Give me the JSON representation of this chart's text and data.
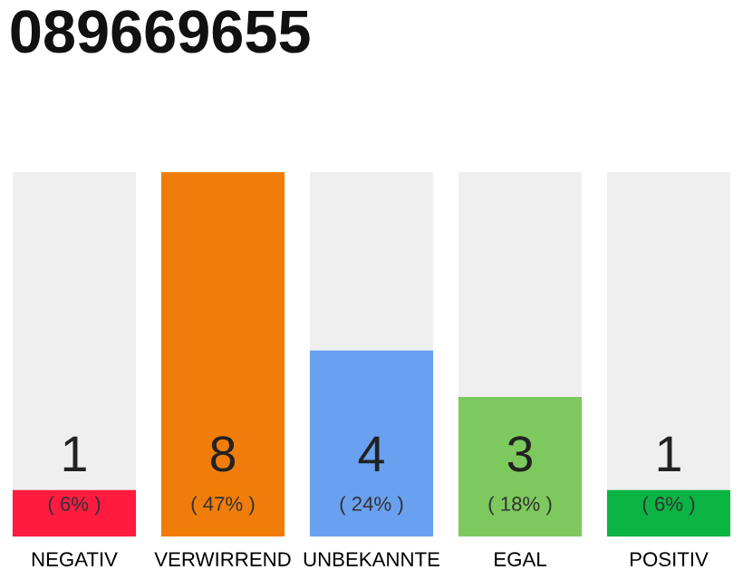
{
  "chart_data": {
    "type": "bar",
    "title": "089669655",
    "categories": [
      "NEGATIV",
      "VERWIRREND",
      "UNBEKANNTE",
      "EGAL",
      "POSITIV"
    ],
    "values": [
      6,
      47,
      24,
      18,
      6
    ],
    "colors": [
      "#ff1a40",
      "#f07d0a",
      "#6aa0f0",
      "#7dc95e",
      "#0bb443"
    ],
    "value_labels": [
      "( 6% )",
      "( 47% )",
      "( 24% )",
      "( 18% )",
      "( 6% )"
    ],
    "annotations": [
      "1",
      "8",
      "4",
      "3",
      "1"
    ],
    "tick_labels": "x"
  }
}
